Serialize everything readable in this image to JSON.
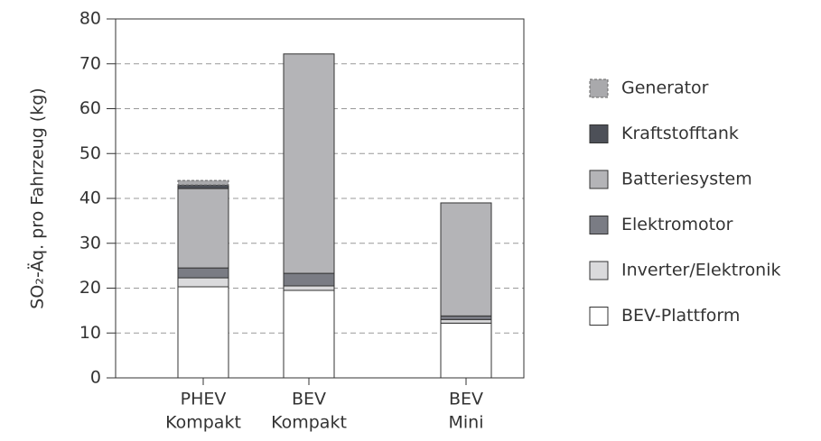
{
  "chart_data": {
    "type": "stacked_bar",
    "y_label": "SO₂-Äq. pro Fahrzeug (kg)",
    "categories": [
      [
        "PHEV",
        "Kompakt"
      ],
      [
        "BEV",
        "Kompakt"
      ],
      [
        "BEV",
        "Mini"
      ]
    ],
    "series": [
      {
        "name": "Generator",
        "color": "#a9a9ac",
        "dashed": true,
        "values": [
          1.0,
          0,
          0
        ]
      },
      {
        "name": "Kraftstofftank",
        "color": "#4d5058",
        "values": [
          0.8,
          0,
          0
        ]
      },
      {
        "name": "Batteriesystem",
        "color": "#b4b4b7",
        "values": [
          17.7,
          48.9,
          25.2
        ]
      },
      {
        "name": "Elektromotor",
        "color": "#7a7c84",
        "values": [
          2.2,
          2.8,
          0.8
        ]
      },
      {
        "name": "Inverter/Elektronik",
        "color": "#dadadc",
        "values": [
          2.0,
          1.0,
          0.8
        ]
      },
      {
        "name": "BEV-Plattform",
        "color": "#ffffff",
        "values": [
          20.3,
          19.5,
          12.2
        ]
      }
    ],
    "ylim": [
      0,
      80
    ],
    "yticks": [
      0,
      10,
      20,
      30,
      40,
      50,
      60,
      70,
      80
    ],
    "grid": true
  }
}
